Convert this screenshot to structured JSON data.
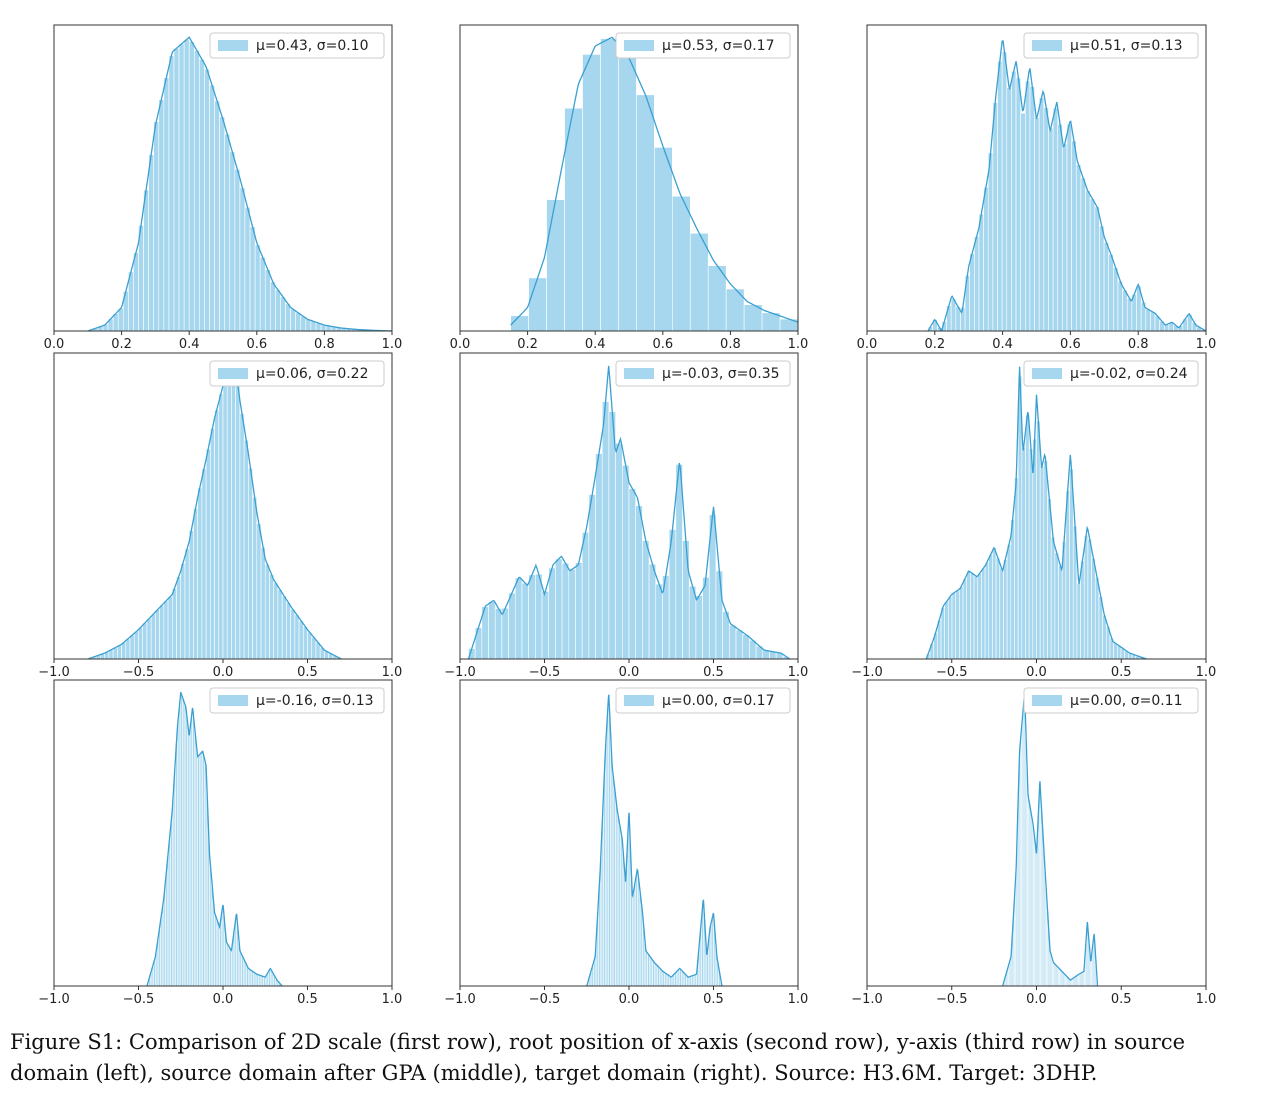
{
  "figure": {
    "caption": "Figure S1: Comparison of 2D scale (first row), root position of x-axis (second row), y-axis (third row) in source domain (left), source domain after GPA (middle), target domain (right). Source: H3.6M. Target: 3DHP."
  },
  "colors": {
    "bar": "#a6d7ee",
    "kde": "#3a9fd1",
    "axis": "#333333",
    "bar_edge": "#ffffff"
  },
  "chart_data": [
    {
      "type": "histogram",
      "legend": "μ=0.43, σ=0.10",
      "legend_position": "top-right",
      "xlim": [
        0,
        1
      ],
      "xticks": [
        "0.0",
        "0.2",
        "0.4",
        "0.6",
        "0.8",
        "1.0"
      ],
      "x": [
        0.1,
        0.15,
        0.2,
        0.25,
        0.3,
        0.35,
        0.4,
        0.45,
        0.5,
        0.55,
        0.6,
        0.65,
        0.7,
        0.75,
        0.8,
        0.85,
        0.9,
        0.95,
        1.0
      ],
      "y": [
        0.0,
        0.02,
        0.08,
        0.3,
        0.7,
        0.95,
        1.0,
        0.9,
        0.72,
        0.52,
        0.3,
        0.16,
        0.08,
        0.04,
        0.02,
        0.01,
        0.005,
        0.002,
        0.0
      ]
    },
    {
      "type": "histogram",
      "legend": "μ=0.53, σ=0.17",
      "legend_position": "top-right",
      "xlim": [
        0,
        1
      ],
      "xticks": [
        "0.0",
        "0.2",
        "0.4",
        "0.6",
        "0.8",
        "1.0"
      ],
      "x": [
        0.15,
        0.2,
        0.25,
        0.3,
        0.35,
        0.4,
        0.45,
        0.5,
        0.55,
        0.6,
        0.65,
        0.7,
        0.75,
        0.8,
        0.85,
        0.9,
        0.95,
        1.0
      ],
      "y": [
        0.02,
        0.08,
        0.25,
        0.55,
        0.84,
        0.97,
        1.0,
        0.93,
        0.8,
        0.63,
        0.47,
        0.35,
        0.24,
        0.16,
        0.1,
        0.07,
        0.05,
        0.03
      ]
    },
    {
      "type": "histogram",
      "legend": "μ=0.51, σ=0.13",
      "legend_position": "top-right",
      "xlim": [
        0,
        1
      ],
      "xticks": [
        "0.0",
        "0.2",
        "0.4",
        "0.6",
        "0.8",
        "1.0"
      ],
      "x": [
        0.18,
        0.2,
        0.22,
        0.25,
        0.28,
        0.3,
        0.33,
        0.36,
        0.38,
        0.4,
        0.42,
        0.44,
        0.46,
        0.48,
        0.5,
        0.52,
        0.54,
        0.56,
        0.58,
        0.6,
        0.62,
        0.65,
        0.68,
        0.7,
        0.72,
        0.75,
        0.78,
        0.8,
        0.82,
        0.85,
        0.88,
        0.9,
        0.92,
        0.95,
        0.97,
        1.0
      ],
      "y": [
        0.0,
        0.04,
        0.0,
        0.12,
        0.06,
        0.22,
        0.35,
        0.55,
        0.8,
        1.0,
        0.82,
        0.92,
        0.74,
        0.9,
        0.72,
        0.82,
        0.68,
        0.78,
        0.62,
        0.72,
        0.58,
        0.48,
        0.42,
        0.32,
        0.26,
        0.16,
        0.1,
        0.16,
        0.08,
        0.06,
        0.02,
        0.03,
        0.01,
        0.06,
        0.02,
        0.0
      ]
    },
    {
      "type": "histogram",
      "legend": "μ=0.06, σ=0.22",
      "legend_position": "top-right",
      "xlim": [
        -1,
        1
      ],
      "xticks": [
        "−1.0",
        "−0.5",
        "0.0",
        "0.5",
        "1.0"
      ],
      "x": [
        -0.8,
        -0.7,
        -0.6,
        -0.5,
        -0.4,
        -0.3,
        -0.25,
        -0.2,
        -0.15,
        -0.1,
        -0.05,
        0.0,
        0.03,
        0.05,
        0.08,
        0.1,
        0.15,
        0.2,
        0.25,
        0.3,
        0.4,
        0.5,
        0.6,
        0.7
      ],
      "y": [
        0.0,
        0.02,
        0.05,
        0.1,
        0.16,
        0.22,
        0.3,
        0.4,
        0.55,
        0.68,
        0.82,
        0.93,
        1.0,
        0.95,
        0.97,
        0.88,
        0.7,
        0.5,
        0.34,
        0.27,
        0.18,
        0.1,
        0.03,
        0.0
      ]
    },
    {
      "type": "histogram",
      "legend": "μ=-0.03, σ=0.35",
      "legend_position": "top-right",
      "xlim": [
        -1,
        1
      ],
      "xticks": [
        "−1.0",
        "−0.5",
        "0.0",
        "0.5",
        "1.0"
      ],
      "x": [
        -0.95,
        -0.85,
        -0.8,
        -0.75,
        -0.65,
        -0.6,
        -0.55,
        -0.5,
        -0.45,
        -0.4,
        -0.35,
        -0.3,
        -0.25,
        -0.2,
        -0.15,
        -0.12,
        -0.08,
        -0.05,
        0.0,
        0.05,
        0.1,
        0.15,
        0.2,
        0.25,
        0.3,
        0.35,
        0.4,
        0.45,
        0.5,
        0.55,
        0.6,
        0.7,
        0.8,
        0.9,
        0.95
      ],
      "y": [
        0.0,
        0.18,
        0.2,
        0.15,
        0.28,
        0.25,
        0.32,
        0.22,
        0.32,
        0.35,
        0.3,
        0.32,
        0.45,
        0.62,
        0.8,
        1.0,
        0.7,
        0.75,
        0.6,
        0.55,
        0.4,
        0.3,
        0.22,
        0.4,
        0.68,
        0.3,
        0.2,
        0.25,
        0.52,
        0.2,
        0.12,
        0.08,
        0.03,
        0.02,
        0.0
      ]
    },
    {
      "type": "histogram",
      "legend": "μ=-0.02, σ=0.24",
      "legend_position": "top-right",
      "xlim": [
        -1,
        1
      ],
      "xticks": [
        "−1.0",
        "−0.5",
        "0.0",
        "0.5",
        "1.0"
      ],
      "x": [
        -0.65,
        -0.6,
        -0.55,
        -0.5,
        -0.45,
        -0.4,
        -0.35,
        -0.3,
        -0.25,
        -0.2,
        -0.15,
        -0.12,
        -0.1,
        -0.08,
        -0.05,
        -0.02,
        0.0,
        0.03,
        0.05,
        0.1,
        0.15,
        0.2,
        0.25,
        0.3,
        0.35,
        0.4,
        0.45,
        0.55,
        0.65
      ],
      "y": [
        0.0,
        0.08,
        0.18,
        0.22,
        0.24,
        0.3,
        0.28,
        0.32,
        0.38,
        0.3,
        0.42,
        0.6,
        1.0,
        0.7,
        0.85,
        0.62,
        0.9,
        0.65,
        0.7,
        0.4,
        0.3,
        0.7,
        0.25,
        0.45,
        0.3,
        0.15,
        0.06,
        0.02,
        0.0
      ]
    },
    {
      "type": "histogram",
      "legend": "μ=-0.16, σ=0.13",
      "legend_position": "top-right",
      "xlim": [
        -1,
        1
      ],
      "xticks": [
        "−1.0",
        "−0.5",
        "0.0",
        "0.5",
        "1.0"
      ],
      "x": [
        -0.45,
        -0.4,
        -0.35,
        -0.3,
        -0.27,
        -0.25,
        -0.22,
        -0.2,
        -0.18,
        -0.15,
        -0.12,
        -0.1,
        -0.08,
        -0.05,
        -0.02,
        0.0,
        0.02,
        0.05,
        0.08,
        0.1,
        0.15,
        0.2,
        0.25,
        0.28,
        0.32,
        0.35
      ],
      "y": [
        0.0,
        0.1,
        0.3,
        0.6,
        0.88,
        1.0,
        0.95,
        0.85,
        0.95,
        0.78,
        0.8,
        0.75,
        0.45,
        0.25,
        0.2,
        0.28,
        0.15,
        0.12,
        0.25,
        0.12,
        0.06,
        0.04,
        0.03,
        0.06,
        0.02,
        0.0
      ]
    },
    {
      "type": "histogram",
      "legend": "μ=0.00, σ=0.17",
      "legend_position": "top-right",
      "xlim": [
        -1,
        1
      ],
      "xticks": [
        "−1.0",
        "−0.5",
        "0.0",
        "0.5",
        "1.0"
      ],
      "x": [
        -0.25,
        -0.2,
        -0.17,
        -0.14,
        -0.12,
        -0.1,
        -0.07,
        -0.04,
        -0.02,
        0.0,
        0.02,
        0.05,
        0.08,
        0.1,
        0.15,
        0.2,
        0.25,
        0.3,
        0.35,
        0.4,
        0.44,
        0.46,
        0.48,
        0.5,
        0.52,
        0.55
      ],
      "y": [
        0.0,
        0.1,
        0.4,
        0.8,
        1.0,
        0.75,
        0.6,
        0.5,
        0.35,
        0.6,
        0.3,
        0.4,
        0.25,
        0.12,
        0.08,
        0.05,
        0.03,
        0.06,
        0.03,
        0.04,
        0.3,
        0.1,
        0.2,
        0.25,
        0.1,
        0.0
      ]
    },
    {
      "type": "histogram",
      "legend": "μ=0.00, σ=0.11",
      "legend_position": "top-right",
      "xlim": [
        -1,
        1
      ],
      "xticks": [
        "−1.0",
        "−0.5",
        "0.0",
        "0.5",
        "1.0"
      ],
      "x": [
        -0.2,
        -0.15,
        -0.12,
        -0.1,
        -0.07,
        -0.05,
        -0.02,
        0.0,
        0.02,
        0.05,
        0.08,
        0.1,
        0.15,
        0.2,
        0.25,
        0.28,
        0.3,
        0.32,
        0.34,
        0.36
      ],
      "y": [
        0.0,
        0.1,
        0.4,
        0.8,
        1.0,
        0.65,
        0.55,
        0.45,
        0.7,
        0.4,
        0.12,
        0.08,
        0.05,
        0.02,
        0.04,
        0.05,
        0.22,
        0.08,
        0.18,
        0.0
      ]
    }
  ]
}
